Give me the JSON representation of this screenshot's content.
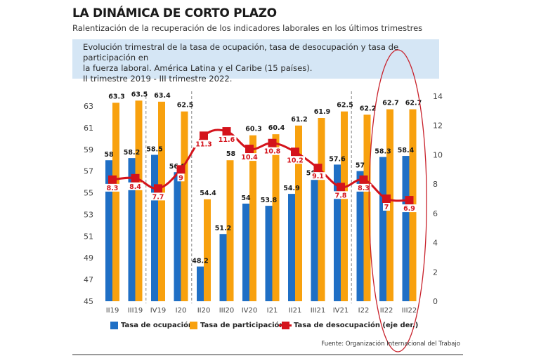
{
  "header": {
    "title": "LA DINÁMICA DE CORTO PLAZO",
    "subtitle": "Ralentización de la recuperación de los indicadores laborales en los últimos trimestres"
  },
  "infobox": {
    "line1": "Evolución trimestral de la tasa de ocupación, tasa de desocupación y tasa de participación en",
    "line2": "la fuerza laboral. América Latina y el Caribe (15 países).",
    "line3": "II trimestre 2019 - III trimestre 2022."
  },
  "colors": {
    "ocupacion": "#1f6fc5",
    "participacion": "#f8a10e",
    "desocupacion": "#d4131b",
    "highlight": "#c8202a"
  },
  "chart_data": {
    "type": "bar",
    "title": "Evolución trimestral de la tasa de ocupación, tasa de desocupación y tasa de participación en la fuerza laboral. América Latina y el Caribe (15 países). II trimestre 2019 - III trimestre 2022.",
    "categories": [
      "II19",
      "III19",
      "IV19",
      "I20",
      "II20",
      "III20",
      "IV20",
      "I21",
      "II21",
      "III21",
      "IV21",
      "I22",
      "II22",
      "III22"
    ],
    "series": [
      {
        "name": "Tasa de ocupación",
        "type": "bar",
        "axis": "left",
        "values": [
          58,
          58.2,
          58.5,
          56.9,
          48.2,
          51.2,
          54,
          53.8,
          54.9,
          56.3,
          57.6,
          57,
          58.3,
          58.4
        ]
      },
      {
        "name": "Tasa de participación",
        "type": "bar",
        "axis": "left",
        "values": [
          63.3,
          63.5,
          63.4,
          62.5,
          54.4,
          58,
          60.3,
          60.4,
          61.2,
          61.9,
          62.5,
          62.2,
          62.7,
          62.7
        ]
      },
      {
        "name": "Tasa de desocupación (eje der.)",
        "type": "line",
        "axis": "right",
        "values": [
          8.3,
          8.4,
          7.7,
          9,
          11.3,
          11.6,
          10.4,
          10.8,
          10.2,
          9.1,
          7.8,
          8.3,
          7,
          6.9
        ]
      }
    ],
    "y_left": {
      "ticks": [
        45,
        47,
        49,
        51,
        53,
        55,
        57,
        59,
        61,
        63
      ],
      "range": [
        45,
        63
      ]
    },
    "y_right": {
      "ticks": [
        0,
        2,
        4,
        6,
        8,
        10,
        12,
        14
      ],
      "range": [
        0,
        14
      ]
    },
    "year_separators_after": [
      "III19",
      "I20",
      "IV21"
    ],
    "highlighted_categories": [
      "II22",
      "III22"
    ],
    "legend": {
      "position": "bottom",
      "items": [
        "Tasa de ocupación",
        "Tasa de participación",
        "Tasa de desocupación (eje der.)"
      ]
    },
    "grid": false
  },
  "footer": {
    "source": "Fuente: Organización Internacional del Trabajo"
  }
}
